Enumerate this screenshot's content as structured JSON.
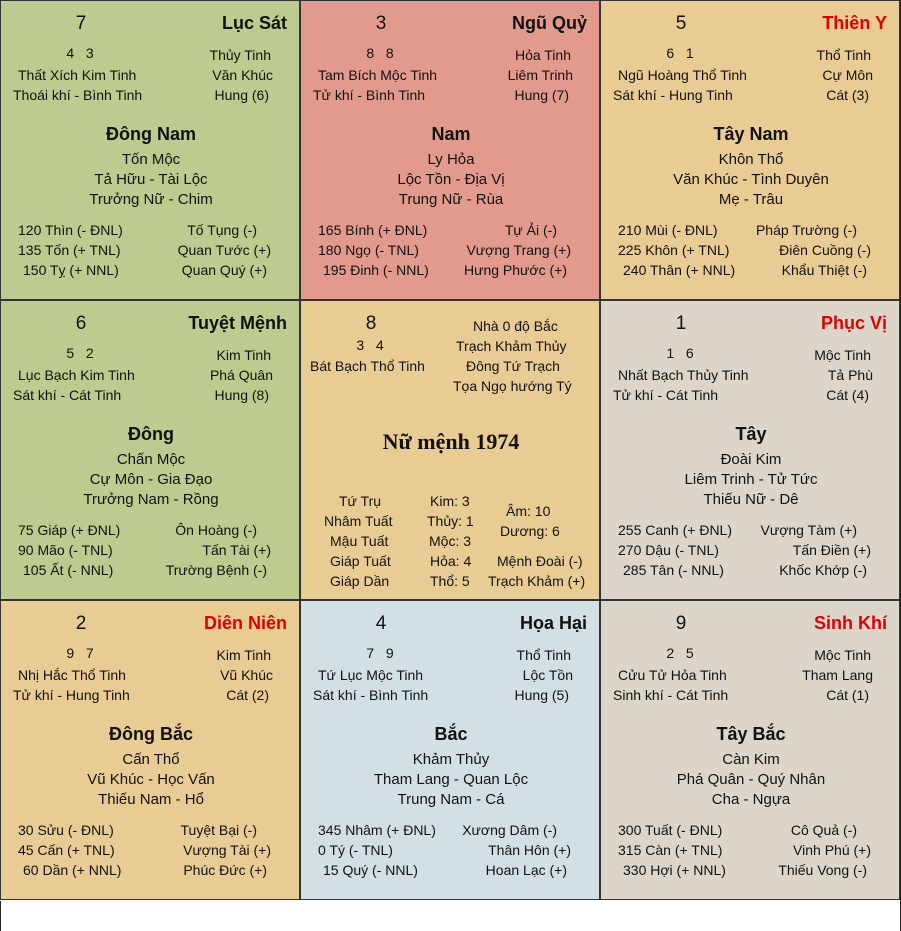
{
  "colors": {
    "se": "#bccb8e",
    "s": "#e29a8c",
    "sw": "#e9cc93",
    "e": "#bccb8e",
    "center": "#e9cc93",
    "w": "#dcd6ca",
    "ne": "#e9cc93",
    "n": "#d2e0e6",
    "nw": "#dcd6ca",
    "label_red": "#e00000"
  },
  "se": {
    "num": "7",
    "dir": "Lục Sát",
    "digits": "4   3",
    "star": "Thủy Tinh",
    "l1": "Thất Xích Kim Tinh",
    "r1": "Văn Khúc",
    "l2": "Thoái khí - Bình Tinh",
    "r2": "Hung (6)",
    "name": "Đông Nam",
    "elem": "Tốn Mộc",
    "desc1": "Tả Hữu - Tài Lộc",
    "desc2": "Trưởng Nữ - Chim",
    "a1": "120 Thìn (- ĐNL)",
    "b1": "Tố Tụng (-)",
    "a2": "135 Tốn (+ TNL)",
    "b2": "Quan Tước (+)",
    "a3": "150 Tỵ (+ NNL)",
    "b3": "Quan Quý (+)"
  },
  "s": {
    "num": "3",
    "dir": "Ngũ Quỷ",
    "digits": "8   8",
    "star": "Hỏa Tinh",
    "l1": "Tam Bích Mộc Tinh",
    "r1": "Liêm Trinh",
    "l2": "Tử khí - Bình Tinh",
    "r2": "Hung (7)",
    "name": "Nam",
    "elem": "Ly Hỏa",
    "desc1": "Lộc Tồn - Địa Vị",
    "desc2": "Trung Nữ - Rùa",
    "a1": "165 Bính (+ ĐNL)",
    "b1": "Tự Ải (-)",
    "a2": "180 Ngọ (- TNL)",
    "b2": "Vượng Trang (+)",
    "a3": "195 Đinh (- NNL)",
    "b3": "Hưng Phước (+)"
  },
  "sw": {
    "num": "5",
    "dir": "Thiên Y",
    "digits": "6   1",
    "star": "Thổ Tinh",
    "l1": "Ngũ Hoàng Thổ Tinh",
    "r1": "Cự Môn",
    "l2": "Sát khí - Hung Tinh",
    "r2": "Cát (3)",
    "name": "Tây Nam",
    "elem": "Khôn Thổ",
    "desc1": "Văn Khúc - Tình Duyên",
    "desc2": "Mẹ - Trâu",
    "a1": "210 Mùi (- ĐNL)",
    "b1": "Pháp Trường (-)",
    "a2": "225 Khôn (+ TNL)",
    "b2": "Điên Cuồng (-)",
    "a3": "240 Thân (+ NNL)",
    "b3": "Khẩu Thiệt (-)"
  },
  "e": {
    "num": "6",
    "dir": "Tuyệt Mệnh",
    "digits": "5   2",
    "star": "Kim Tinh",
    "l1": "Lục Bạch Kim Tinh",
    "r1": "Phá Quân",
    "l2": "Sát khí - Cát Tinh",
    "r2": "Hung (8)",
    "name": "Đông",
    "elem": "Chấn Mộc",
    "desc1": "Cự Môn - Gia Đạo",
    "desc2": "Trưởng Nam - Rồng",
    "a1": "75 Giáp (+ ĐNL)",
    "b1": "Ôn Hoàng (-)",
    "a2": "90 Mão (- TNL)",
    "b2": "Tấn Tài (+)",
    "a3": "105 Ất (- NNL)",
    "b3": "Trường Bệnh (-)"
  },
  "center": {
    "num": "8",
    "digits": "3   4",
    "star": "Bát Bạch Thổ Tinh",
    "info1": "Nhà 0 độ Bắc",
    "info2": "Trạch Khảm Thủy",
    "info3": "Đông Tứ Trạch",
    "info4": "Tọa Ngọ hướng Tý",
    "title": "Nữ mệnh 1974",
    "tt1": "Tứ Trụ",
    "tt2": "Nhâm Tuất",
    "tt3": "Mậu Tuất",
    "tt4": "Giáp Tuất",
    "tt5": "Giáp Dần",
    "k1": "Kim: 3",
    "k2": "Thủy: 1",
    "k3": "Mộc: 3",
    "k4": "Hỏa: 4",
    "k5": "Thổ: 5",
    "am": "Âm: 10",
    "duong": "Dương: 6",
    "m1": "Mệnh Đoài (-)",
    "m2": "Trạch Khảm (+)"
  },
  "w": {
    "num": "1",
    "dir": "Phục Vị",
    "digits": "1   6",
    "star": "Mộc Tinh",
    "l1": "Nhất Bạch Thủy Tinh",
    "r1": "Tả Phù",
    "l2": "Tử khí - Cát Tinh",
    "r2": "Cát (4)",
    "name": "Tây",
    "elem": "Đoài Kim",
    "desc1": "Liêm Trinh - Tử Tức",
    "desc2": "Thiếu Nữ - Dê",
    "a1": "255 Canh (+ ĐNL)",
    "b1": "Vượng Tàm (+)",
    "a2": "270 Dậu (- TNL)",
    "b2": "Tấn Điền (+)",
    "a3": "285 Tân (- NNL)",
    "b3": "Khốc Khớp (-)"
  },
  "ne": {
    "num": "2",
    "dir": "Diên Niên",
    "digits": "9   7",
    "star": "Kim Tinh",
    "l1": "Nhị Hắc Thổ Tinh",
    "r1": "Vũ Khúc",
    "l2": "Tử khí - Hung Tinh",
    "r2": "Cát (2)",
    "name": "Đông Bắc",
    "elem": "Cấn Thổ",
    "desc1": "Vũ Khúc - Học Vấn",
    "desc2": "Thiếu Nam - Hổ",
    "a1": "30 Sửu (- ĐNL)",
    "b1": "Tuyệt Bại (-)",
    "a2": "45 Cấn (+ TNL)",
    "b2": "Vượng Tài (+)",
    "a3": "60 Dần (+ NNL)",
    "b3": "Phúc Đức (+)"
  },
  "n": {
    "num": "4",
    "dir": "Họa Hại",
    "digits": "7   9",
    "star": "Thổ Tinh",
    "l1": "Tứ Lục Mộc Tinh",
    "r1": "Lộc Tồn",
    "l2": "Sát khí - Bình Tinh",
    "r2": "Hung (5)",
    "name": "Bắc",
    "elem": "Khảm Thủy",
    "desc1": "Tham Lang - Quan Lộc",
    "desc2": "Trung Nam - Cá",
    "a1": "345 Nhâm (+ ĐNL)",
    "b1": "Xương Dâm (-)",
    "a2": "0 Tý (- TNL)",
    "b2": "Thân Hôn (+)",
    "a3": "15 Quý (- NNL)",
    "b3": "Hoan Lạc (+)"
  },
  "nw": {
    "num": "9",
    "dir": "Sinh Khí",
    "digits": "2   5",
    "star": "Mộc Tinh",
    "l1": "Cửu Tử Hỏa Tinh",
    "r1": "Tham Lang",
    "l2": "Sinh khí - Cát Tinh",
    "r2": "Cát (1)",
    "name": "Tây Bắc",
    "elem": "Càn Kim",
    "desc1": "Phá Quân - Quý Nhân",
    "desc2": "Cha - Ngựa",
    "a1": "300 Tuất (- ĐNL)",
    "b1": "Cô Quả (-)",
    "a2": "315 Càn (+ TNL)",
    "b2": "Vinh Phú (+)",
    "a3": "330 Hợi (+ NNL)",
    "b3": "Thiếu Vong (-)"
  }
}
